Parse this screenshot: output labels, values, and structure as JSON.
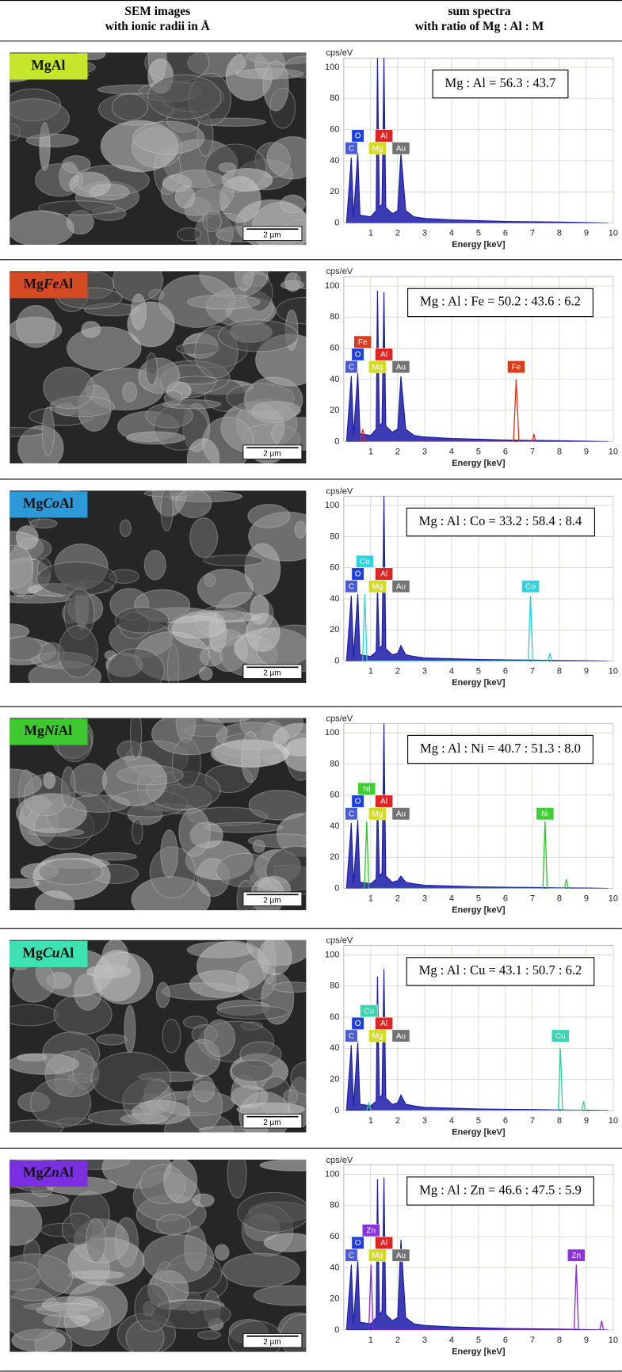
{
  "header": [
    [
      "SEM images",
      "with ionic radii in Å"
    ],
    [
      "sum spectra",
      "with ratio of Mg : Al : M"
    ]
  ],
  "rows": [
    {
      "label": [
        "Mg",
        "Al"
      ],
      "label_color": "#c6e62c",
      "scale_bar": "2 µm",
      "chart": {
        "type": "spectrum",
        "y_label": "cps/eV",
        "x_label": "Energy [keV]",
        "annotation": "Mg : Al = 56.3 : 43.7",
        "xlim": [
          0,
          10
        ],
        "xticks": [
          1,
          2,
          3,
          4,
          5,
          6,
          7,
          8,
          9,
          10
        ],
        "ylim": [
          0,
          106
        ],
        "yticks": [
          0,
          20,
          40,
          60,
          80,
          100
        ],
        "grid": true,
        "series": [
          {
            "color": "#1a1aa8",
            "x": [
              0.1,
              0.28,
              0.36,
              0.52,
              0.6,
              1.0,
              1.2,
              1.25,
              1.32,
              1.42,
              1.49,
              1.56,
              1.8,
              2.0,
              2.12,
              2.3,
              2.6,
              3,
              4,
              5,
              6,
              7,
              8,
              9,
              9.8
            ],
            "values": [
              0,
              42,
              4,
              45,
              5,
              4,
              8,
              106,
              10,
              12,
              106,
              10,
              6,
              8,
              45,
              8,
              4,
              3,
              2,
              1.5,
              1,
              0.8,
              0.6,
              0.3,
              0
            ]
          }
        ],
        "element_labels": [
          {
            "label": "C",
            "x": 0.28,
            "color": "#4b5bd4"
          },
          {
            "label": "O",
            "x": 0.52,
            "color": "#1d3fe0"
          },
          {
            "label": "Mg",
            "x": 1.25,
            "color": "#d4dc1e"
          },
          {
            "label": "Al",
            "x": 1.49,
            "color": "#e02424"
          },
          {
            "label": "Au",
            "x": 2.12,
            "color": "#737373"
          }
        ]
      }
    },
    {
      "label": [
        "Mg",
        "Fe",
        "Al"
      ],
      "label_color": "#d44a22",
      "scale_bar": "2 µm",
      "chart": {
        "type": "spectrum",
        "y_label": "cps/eV",
        "x_label": "Energy [keV]",
        "annotation": "Mg : Al : Fe = 50.2 : 43.6 : 6.2",
        "xlim": [
          0,
          10
        ],
        "xticks": [
          1,
          2,
          3,
          4,
          5,
          6,
          7,
          8,
          9,
          10
        ],
        "ylim": [
          0,
          106
        ],
        "yticks": [
          0,
          20,
          40,
          60,
          80,
          100
        ],
        "grid": true,
        "series": [
          {
            "color": "#1a1aa8",
            "x": [
              0.1,
              0.28,
              0.36,
              0.52,
              0.6,
              1.0,
              1.2,
              1.25,
              1.32,
              1.42,
              1.49,
              1.56,
              1.8,
              2.0,
              2.12,
              2.3,
              2.6,
              3,
              4,
              5,
              6,
              7,
              8,
              9,
              9.8
            ],
            "values": [
              0,
              42,
              4,
              44,
              5,
              4,
              8,
              97,
              10,
              12,
              96,
              10,
              6,
              8,
              42,
              8,
              4,
              3,
              2,
              1.5,
              1,
              0.8,
              0.6,
              0.3,
              0
            ]
          },
          {
            "color": "#e03020",
            "x": [
              0.6,
              0.7,
              0.8,
              6.3,
              6.4,
              6.5,
              7.0,
              7.06,
              7.12
            ],
            "values": [
              0,
              8,
              0,
              0,
              40,
              0,
              0,
              5,
              0
            ]
          }
        ],
        "element_labels": [
          {
            "label": "C",
            "x": 0.28,
            "color": "#4b5bd4"
          },
          {
            "label": "O",
            "x": 0.52,
            "color": "#1d3fe0"
          },
          {
            "label": "Mg",
            "x": 1.25,
            "color": "#d4dc1e"
          },
          {
            "label": "Al",
            "x": 1.49,
            "color": "#e02424"
          },
          {
            "label": "Au",
            "x": 2.12,
            "color": "#737373"
          },
          {
            "label": "Fe",
            "x": 0.7,
            "color": "#e03a1c"
          },
          {
            "label": "Fe",
            "x": 6.4,
            "color": "#e03a1c"
          }
        ]
      }
    },
    {
      "label": [
        "Mg",
        "Co",
        "Al"
      ],
      "label_color": "#2c9ad8",
      "scale_bar": "2 µm",
      "chart": {
        "type": "spectrum",
        "y_label": "cps/eV",
        "x_label": "Energy [keV]",
        "annotation": "Mg : Al : Co = 33.2 : 58.4 : 8.4",
        "xlim": [
          0,
          10
        ],
        "xticks": [
          1,
          2,
          3,
          4,
          5,
          6,
          7,
          8,
          9,
          10
        ],
        "ylim": [
          0,
          106
        ],
        "yticks": [
          0,
          20,
          40,
          60,
          80,
          100
        ],
        "grid": true,
        "series": [
          {
            "color": "#1a1aa8",
            "x": [
              0.1,
              0.28,
              0.36,
              0.52,
              0.6,
              1.0,
              1.2,
              1.25,
              1.32,
              1.42,
              1.49,
              1.56,
              1.8,
              2.0,
              2.12,
              2.3,
              2.6,
              3,
              4,
              5,
              6,
              7,
              8,
              9,
              9.8
            ],
            "values": [
              0,
              42,
              3,
              43,
              4,
              3,
              6,
              48,
              8,
              10,
              106,
              8,
              4,
              5,
              10,
              4,
              3,
              2,
              1.5,
              1,
              0.8,
              0.6,
              0.4,
              0.2,
              0
            ]
          },
          {
            "color": "#2ad0d8",
            "x": [
              0.7,
              0.78,
              0.86,
              6.85,
              6.93,
              7.01,
              7.58,
              7.65,
              7.72
            ],
            "values": [
              0,
              43,
              0,
              0,
              42,
              0,
              0,
              5,
              0
            ]
          }
        ],
        "element_labels": [
          {
            "label": "C",
            "x": 0.28,
            "color": "#4b5bd4"
          },
          {
            "label": "O",
            "x": 0.52,
            "color": "#1d3fe0"
          },
          {
            "label": "Mg",
            "x": 1.25,
            "color": "#d4dc1e"
          },
          {
            "label": "Al",
            "x": 1.49,
            "color": "#e02424"
          },
          {
            "label": "Au",
            "x": 2.12,
            "color": "#737373"
          },
          {
            "label": "Co",
            "x": 0.78,
            "color": "#30d4e0"
          },
          {
            "label": "Co",
            "x": 6.93,
            "color": "#30d4e0"
          }
        ]
      }
    },
    {
      "label": [
        "Mg",
        "Ni",
        "Al"
      ],
      "label_color": "#3ec930",
      "scale_bar": "2 µm",
      "chart": {
        "type": "spectrum",
        "y_label": "cps/eV",
        "x_label": "Energy [keV]",
        "annotation": "Mg : Al : Ni = 40.7 : 51.3 : 8.0",
        "xlim": [
          0,
          10
        ],
        "xticks": [
          1,
          2,
          3,
          4,
          5,
          6,
          7,
          8,
          9,
          10
        ],
        "ylim": [
          0,
          106
        ],
        "yticks": [
          0,
          20,
          40,
          60,
          80,
          100
        ],
        "grid": true,
        "series": [
          {
            "color": "#1a1aa8",
            "x": [
              0.1,
              0.28,
              0.36,
              0.52,
              0.6,
              1.0,
              1.2,
              1.25,
              1.32,
              1.42,
              1.49,
              1.56,
              1.8,
              2.0,
              2.12,
              2.3,
              2.6,
              3,
              4,
              5,
              6,
              7,
              8,
              9,
              9.8
            ],
            "values": [
              0,
              42,
              3,
              44,
              4,
              3,
              6,
              60,
              8,
              10,
              106,
              8,
              4,
              5,
              8,
              4,
              3,
              2,
              1.5,
              1,
              0.8,
              0.6,
              0.4,
              0.2,
              0
            ]
          },
          {
            "color": "#30c828",
            "x": [
              0.77,
              0.85,
              0.93,
              7.39,
              7.47,
              7.55,
              8.19,
              8.26,
              8.33
            ],
            "values": [
              0,
              43,
              0,
              0,
              43,
              0,
              0,
              6,
              0
            ]
          }
        ],
        "element_labels": [
          {
            "label": "C",
            "x": 0.28,
            "color": "#4b5bd4"
          },
          {
            "label": "O",
            "x": 0.52,
            "color": "#1d3fe0"
          },
          {
            "label": "Mg",
            "x": 1.25,
            "color": "#d4dc1e"
          },
          {
            "label": "Al",
            "x": 1.49,
            "color": "#e02424"
          },
          {
            "label": "Au",
            "x": 2.12,
            "color": "#737373"
          },
          {
            "label": "Ni",
            "x": 0.85,
            "color": "#3ed030"
          },
          {
            "label": "Ni",
            "x": 7.47,
            "color": "#3ed030"
          }
        ]
      }
    },
    {
      "label": [
        "Mg",
        "Cu",
        "Al"
      ],
      "label_color": "#3de2b2",
      "scale_bar": "2 µm",
      "chart": {
        "type": "spectrum",
        "y_label": "cps/eV",
        "x_label": "Energy [keV]",
        "annotation": "Mg : Al : Cu = 43.1 : 50.7 : 6.2",
        "xlim": [
          0,
          10
        ],
        "xticks": [
          1,
          2,
          3,
          4,
          5,
          6,
          7,
          8,
          9,
          10
        ],
        "ylim": [
          0,
          106
        ],
        "yticks": [
          0,
          20,
          40,
          60,
          80,
          100
        ],
        "grid": true,
        "series": [
          {
            "color": "#1a1aa8",
            "x": [
              0.1,
              0.28,
              0.36,
              0.52,
              0.6,
              1.0,
              1.2,
              1.25,
              1.32,
              1.42,
              1.49,
              1.56,
              1.8,
              2.0,
              2.12,
              2.3,
              2.6,
              3,
              4,
              5,
              6,
              7,
              8,
              9,
              9.8
            ],
            "values": [
              0,
              42,
              3,
              44,
              4,
              3,
              6,
              86,
              8,
              10,
              91,
              8,
              4,
              5,
              10,
              4,
              3,
              2,
              1.5,
              1,
              0.8,
              0.6,
              0.4,
              0.2,
              0
            ]
          },
          {
            "color": "#2cd0a0",
            "x": [
              0.85,
              0.93,
              1.01,
              7.96,
              8.04,
              8.12,
              8.83,
              8.9,
              8.97
            ],
            "values": [
              0,
              5,
              0,
              0,
              40,
              0,
              0,
              6,
              0
            ]
          }
        ],
        "element_labels": [
          {
            "label": "C",
            "x": 0.28,
            "color": "#4b5bd4"
          },
          {
            "label": "O",
            "x": 0.52,
            "color": "#1d3fe0"
          },
          {
            "label": "Mg",
            "x": 1.25,
            "color": "#d4dc1e"
          },
          {
            "label": "Al",
            "x": 1.49,
            "color": "#e02424"
          },
          {
            "label": "Au",
            "x": 2.12,
            "color": "#737373"
          },
          {
            "label": "Cu",
            "x": 0.93,
            "color": "#3ad8b0"
          },
          {
            "label": "Cu",
            "x": 8.04,
            "color": "#3ad8b0"
          }
        ]
      }
    },
    {
      "label": [
        "Mg",
        "Zn",
        "Al"
      ],
      "label_color": "#7a30e0",
      "scale_bar": "2 µm",
      "chart": {
        "type": "spectrum",
        "y_label": "cps/eV",
        "x_label": "Energy [keV]",
        "annotation": "Mg : Al : Zn = 46.6 : 47.5 : 5.9",
        "xlim": [
          0,
          10
        ],
        "xticks": [
          1,
          2,
          3,
          4,
          5,
          6,
          7,
          8,
          9,
          10
        ],
        "ylim": [
          0,
          106
        ],
        "yticks": [
          0,
          20,
          40,
          60,
          80,
          100
        ],
        "grid": true,
        "series": [
          {
            "color": "#1a1aa8",
            "x": [
              0.1,
              0.28,
              0.36,
              0.52,
              0.6,
              1.0,
              1.2,
              1.25,
              1.32,
              1.42,
              1.49,
              1.56,
              1.8,
              2.0,
              2.12,
              2.3,
              2.6,
              3,
              4,
              5,
              6,
              7,
              8,
              9,
              9.8
            ],
            "values": [
              0,
              42,
              4,
              45,
              5,
              4,
              8,
              97,
              10,
              12,
              98,
              10,
              6,
              8,
              58,
              8,
              4,
              3,
              2,
              1.5,
              1,
              0.8,
              0.6,
              0.3,
              0
            ]
          },
          {
            "color": "#8a2ad8",
            "x": [
              0.93,
              1.01,
              1.09,
              8.55,
              8.63,
              8.71,
              9.5,
              9.57,
              9.64
            ],
            "values": [
              0,
              42,
              0,
              0,
              42,
              0,
              0,
              6,
              0
            ]
          }
        ],
        "element_labels": [
          {
            "label": "C",
            "x": 0.28,
            "color": "#4b5bd4"
          },
          {
            "label": "O",
            "x": 0.52,
            "color": "#1d3fe0"
          },
          {
            "label": "Mg",
            "x": 1.25,
            "color": "#d4dc1e"
          },
          {
            "label": "Al",
            "x": 1.49,
            "color": "#e02424"
          },
          {
            "label": "Au",
            "x": 2.12,
            "color": "#737373"
          },
          {
            "label": "Zn",
            "x": 1.01,
            "color": "#8a34e0"
          },
          {
            "label": "Zn",
            "x": 8.63,
            "color": "#8a34e0"
          }
        ]
      }
    }
  ]
}
